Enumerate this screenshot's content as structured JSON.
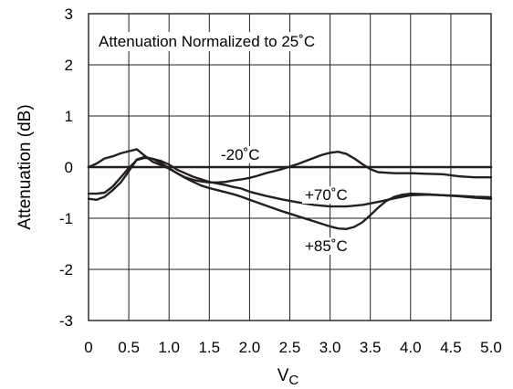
{
  "chart_data": {
    "type": "line",
    "title": "",
    "xlabel": "V",
    "xlabel_sub": "C",
    "ylabel": "Attenuation (dB)",
    "xlim": [
      0,
      5
    ],
    "ylim": [
      -3,
      3
    ],
    "grid": true,
    "x_ticks": [
      0,
      0.5,
      1.0,
      1.5,
      2.0,
      2.5,
      3.0,
      3.5,
      4.0,
      4.5,
      5.0
    ],
    "x_tick_labels": [
      "0",
      "0.5",
      "1.0",
      "1.5",
      "2.0",
      "2.5",
      "3.0",
      "3.5",
      "4.0",
      "4.5",
      "5.0"
    ],
    "y_ticks": [
      -3,
      -2,
      -1,
      0,
      1,
      2,
      3
    ],
    "y_tick_labels": [
      "-3",
      "-2",
      "-1",
      "0",
      "1",
      "2",
      "3"
    ],
    "annotations": [
      {
        "id": "note",
        "text": "Attenuation Normalized to 25˚C"
      },
      {
        "id": "minus20",
        "text": "-20˚C"
      },
      {
        "id": "plus70",
        "text": "+70˚C"
      },
      {
        "id": "plus85",
        "text": "+85˚C"
      }
    ],
    "series": [
      {
        "id": "reference",
        "x": [
          0,
          5.0
        ],
        "y": [
          0,
          0
        ]
      },
      {
        "id": "minus20",
        "x": [
          0,
          0.1,
          0.2,
          0.3,
          0.4,
          0.5,
          0.6,
          0.7,
          0.8,
          0.9,
          1.0,
          1.1,
          1.2,
          1.3,
          1.4,
          1.5,
          1.6,
          1.7,
          1.8,
          1.9,
          2.0,
          2.1,
          2.2,
          2.3,
          2.4,
          2.5,
          2.6,
          2.7,
          2.8,
          2.9,
          3.0,
          3.1,
          3.2,
          3.3,
          3.4,
          3.5,
          3.6,
          3.8,
          4.0,
          4.2,
          4.4,
          4.6,
          4.8,
          5.0
        ],
        "y": [
          0.0,
          0.07,
          0.17,
          0.21,
          0.27,
          0.31,
          0.35,
          0.22,
          0.1,
          0.04,
          -0.03,
          -0.12,
          -0.2,
          -0.25,
          -0.28,
          -0.3,
          -0.3,
          -0.29,
          -0.26,
          -0.24,
          -0.21,
          -0.17,
          -0.12,
          -0.08,
          -0.04,
          0.01,
          0.06,
          0.12,
          0.18,
          0.24,
          0.28,
          0.3,
          0.26,
          0.17,
          0.06,
          -0.04,
          -0.1,
          -0.12,
          -0.12,
          -0.13,
          -0.14,
          -0.18,
          -0.2,
          -0.2
        ]
      },
      {
        "id": "plus70",
        "x": [
          0,
          0.1,
          0.2,
          0.3,
          0.4,
          0.5,
          0.6,
          0.7,
          0.8,
          0.9,
          1.0,
          1.1,
          1.2,
          1.3,
          1.4,
          1.5,
          1.6,
          1.7,
          1.8,
          1.9,
          2.0,
          2.2,
          2.4,
          2.6,
          2.8,
          3.0,
          3.2,
          3.4,
          3.6,
          3.8,
          4.0,
          4.2,
          4.4,
          4.6,
          4.8,
          5.0
        ],
        "y": [
          -0.52,
          -0.52,
          -0.5,
          -0.38,
          -0.2,
          -0.02,
          0.14,
          0.18,
          0.16,
          0.12,
          0.05,
          -0.05,
          -0.12,
          -0.19,
          -0.24,
          -0.29,
          -0.32,
          -0.35,
          -0.39,
          -0.42,
          -0.48,
          -0.56,
          -0.63,
          -0.69,
          -0.74,
          -0.77,
          -0.77,
          -0.74,
          -0.68,
          -0.61,
          -0.55,
          -0.54,
          -0.55,
          -0.56,
          -0.58,
          -0.59
        ]
      },
      {
        "id": "plus85",
        "x": [
          0,
          0.1,
          0.2,
          0.3,
          0.4,
          0.5,
          0.6,
          0.7,
          0.8,
          0.9,
          1.0,
          1.1,
          1.2,
          1.3,
          1.4,
          1.5,
          1.6,
          1.7,
          1.8,
          1.9,
          2.0,
          2.2,
          2.4,
          2.6,
          2.8,
          3.0,
          3.1,
          3.2,
          3.3,
          3.4,
          3.5,
          3.6,
          3.7,
          3.8,
          3.9,
          4.0,
          4.2,
          4.4,
          4.6,
          4.8,
          5.0
        ],
        "y": [
          -0.62,
          -0.64,
          -0.58,
          -0.45,
          -0.3,
          -0.08,
          0.15,
          0.2,
          0.16,
          0.08,
          -0.02,
          -0.12,
          -0.21,
          -0.29,
          -0.36,
          -0.41,
          -0.45,
          -0.49,
          -0.53,
          -0.58,
          -0.64,
          -0.75,
          -0.86,
          -0.96,
          -1.06,
          -1.16,
          -1.2,
          -1.21,
          -1.17,
          -1.08,
          -0.94,
          -0.79,
          -0.66,
          -0.58,
          -0.54,
          -0.52,
          -0.53,
          -0.55,
          -0.57,
          -0.6,
          -0.62
        ]
      }
    ]
  },
  "colors": {
    "line": "#231f20",
    "grid": "#231f20",
    "background": "#ffffff"
  }
}
